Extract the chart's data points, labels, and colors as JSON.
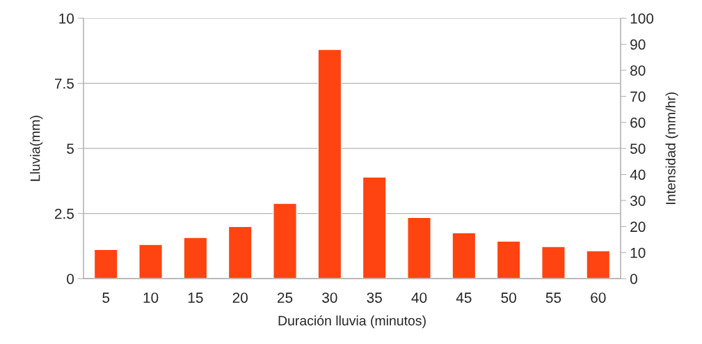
{
  "chart_data": {
    "type": "bar",
    "xlabel": "Duración lluvia (minutos)",
    "ylabel": "Lluvia(mm)",
    "y2label": "Intensidad (mm/hr)",
    "categories": [
      "5",
      "10",
      "15",
      "20",
      "25",
      "30",
      "35",
      "40",
      "45",
      "50",
      "55",
      "60"
    ],
    "series": [
      {
        "color": "#ff4411",
        "values": [
          1.12,
          1.31,
          1.58,
          2.0,
          2.89,
          8.8,
          3.9,
          2.35,
          1.76,
          1.44,
          1.23,
          1.07
        ]
      }
    ],
    "ylim": [
      0,
      10
    ],
    "yticks": [
      0,
      2.5,
      5,
      7.5,
      10
    ],
    "y2lim": [
      0,
      100
    ],
    "y2ticks": [
      0,
      10,
      20,
      30,
      40,
      50,
      60,
      70,
      80,
      90,
      100
    ],
    "grid": "y"
  }
}
